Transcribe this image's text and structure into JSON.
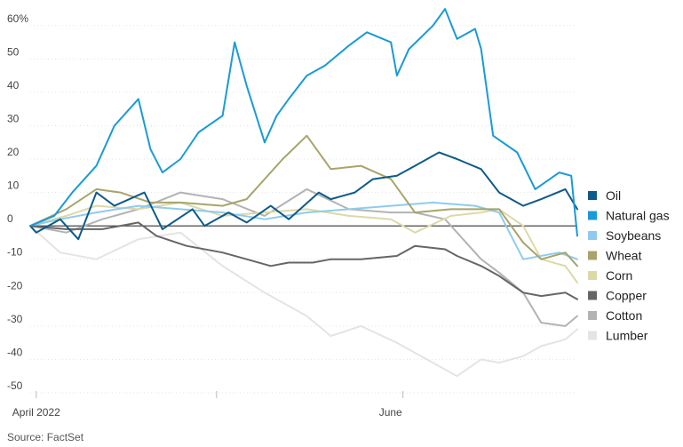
{
  "chart_data": {
    "type": "line",
    "title": "",
    "xlabel": "",
    "ylabel": "",
    "y_unit_suffix": "%",
    "ylim": [
      -50,
      65
    ],
    "yticks": [
      60,
      50,
      40,
      30,
      20,
      10,
      0,
      -10,
      -20,
      -30,
      -40,
      -50
    ],
    "ytick_labels": [
      "60%",
      "50",
      "40",
      "30",
      "20",
      "10",
      "0",
      "-10",
      "-20",
      "-30",
      "-40",
      "-50"
    ],
    "xlim": [
      "2022-03-31",
      "2022-06-30"
    ],
    "xticks": [
      {
        "date": "2022-04-01",
        "label": "April 2022"
      },
      {
        "date": "2022-05-01",
        "label": ""
      },
      {
        "date": "2022-06-01",
        "label": "June"
      }
    ],
    "grid": true,
    "legend_position": "right",
    "source": "Source: FactSet",
    "series": [
      {
        "name": "Oil",
        "color": "#0e5a8a",
        "x": [
          "2022-03-31",
          "2022-04-01",
          "2022-04-05",
          "2022-04-08",
          "2022-04-11",
          "2022-04-14",
          "2022-04-19",
          "2022-04-22",
          "2022-04-27",
          "2022-04-29",
          "2022-05-03",
          "2022-05-06",
          "2022-05-10",
          "2022-05-13",
          "2022-05-18",
          "2022-05-20",
          "2022-05-24",
          "2022-05-27",
          "2022-05-31",
          "2022-06-03",
          "2022-06-07",
          "2022-06-10",
          "2022-06-14",
          "2022-06-17",
          "2022-06-21",
          "2022-06-24",
          "2022-06-28",
          "2022-06-30"
        ],
        "y": [
          0,
          -2,
          2,
          -4,
          10,
          6,
          10,
          -1,
          5,
          0,
          4,
          1,
          6,
          2,
          10,
          8,
          10,
          14,
          15,
          18,
          22,
          20,
          17,
          10,
          6,
          8,
          11,
          5
        ]
      },
      {
        "name": "Natural gas",
        "color": "#1a9ad6",
        "x": [
          "2022-03-31",
          "2022-04-04",
          "2022-04-07",
          "2022-04-11",
          "2022-04-14",
          "2022-04-18",
          "2022-04-20",
          "2022-04-22",
          "2022-04-25",
          "2022-04-28",
          "2022-05-02",
          "2022-05-04",
          "2022-05-06",
          "2022-05-09",
          "2022-05-11",
          "2022-05-13",
          "2022-05-16",
          "2022-05-19",
          "2022-05-23",
          "2022-05-26",
          "2022-05-30",
          "2022-05-31",
          "2022-06-02",
          "2022-06-06",
          "2022-06-08",
          "2022-06-10",
          "2022-06-13",
          "2022-06-14",
          "2022-06-16",
          "2022-06-20",
          "2022-06-23",
          "2022-06-27",
          "2022-06-29",
          "2022-06-30"
        ],
        "y": [
          0,
          3,
          10,
          18,
          30,
          38,
          23,
          16,
          20,
          28,
          33,
          55,
          42,
          25,
          33,
          38,
          45,
          48,
          54,
          58,
          55,
          45,
          53,
          60,
          65,
          56,
          59,
          53,
          27,
          22,
          11,
          16,
          15,
          -3
        ]
      },
      {
        "name": "Soybeans",
        "color": "#8fcbee",
        "x": [
          "2022-03-31",
          "2022-04-05",
          "2022-04-11",
          "2022-04-18",
          "2022-04-25",
          "2022-05-02",
          "2022-05-09",
          "2022-05-16",
          "2022-05-23",
          "2022-05-30",
          "2022-06-06",
          "2022-06-13",
          "2022-06-17",
          "2022-06-21",
          "2022-06-27",
          "2022-06-30"
        ],
        "y": [
          0,
          2,
          4,
          6,
          5,
          4,
          2,
          4,
          5,
          6,
          7,
          6,
          4,
          -10,
          -8,
          -10
        ]
      },
      {
        "name": "Wheat",
        "color": "#a8a46a",
        "x": [
          "2022-03-31",
          "2022-04-06",
          "2022-04-11",
          "2022-04-15",
          "2022-04-20",
          "2022-04-25",
          "2022-05-02",
          "2022-05-06",
          "2022-05-12",
          "2022-05-16",
          "2022-05-20",
          "2022-05-25",
          "2022-05-30",
          "2022-06-03",
          "2022-06-09",
          "2022-06-14",
          "2022-06-17",
          "2022-06-21",
          "2022-06-24",
          "2022-06-28",
          "2022-06-30"
        ],
        "y": [
          0,
          5,
          11,
          10,
          7,
          7,
          6,
          8,
          20,
          27,
          17,
          18,
          14,
          4,
          5,
          5,
          5,
          -5,
          -10,
          -8,
          -12
        ]
      },
      {
        "name": "Corn",
        "color": "#dcd9a8",
        "x": [
          "2022-03-31",
          "2022-04-06",
          "2022-04-11",
          "2022-04-18",
          "2022-04-25",
          "2022-05-02",
          "2022-05-09",
          "2022-05-16",
          "2022-05-23",
          "2022-05-30",
          "2022-06-03",
          "2022-06-09",
          "2022-06-14",
          "2022-06-17",
          "2022-06-21",
          "2022-06-24",
          "2022-06-28",
          "2022-06-30"
        ],
        "y": [
          0,
          3,
          6,
          5,
          7,
          3,
          4,
          5,
          3,
          2,
          -2,
          3,
          4,
          5,
          0,
          -10,
          -12,
          -17
        ]
      },
      {
        "name": "Copper",
        "color": "#666666",
        "x": [
          "2022-03-31",
          "2022-04-06",
          "2022-04-12",
          "2022-04-18",
          "2022-04-21",
          "2022-04-26",
          "2022-05-02",
          "2022-05-06",
          "2022-05-10",
          "2022-05-13",
          "2022-05-17",
          "2022-05-20",
          "2022-05-25",
          "2022-05-31",
          "2022-06-03",
          "2022-06-08",
          "2022-06-10",
          "2022-06-14",
          "2022-06-17",
          "2022-06-21",
          "2022-06-24",
          "2022-06-28",
          "2022-06-30"
        ],
        "y": [
          0,
          -1,
          -1,
          1,
          -3,
          -6,
          -8,
          -10,
          -12,
          -11,
          -11,
          -10,
          -10,
          -9,
          -6,
          -7,
          -9,
          -12,
          -15,
          -20,
          -21,
          -20,
          -22
        ]
      },
      {
        "name": "Cotton",
        "color": "#b3b3b3",
        "x": [
          "2022-03-31",
          "2022-04-06",
          "2022-04-12",
          "2022-04-18",
          "2022-04-25",
          "2022-05-02",
          "2022-05-09",
          "2022-05-16",
          "2022-05-23",
          "2022-05-30",
          "2022-06-03",
          "2022-06-08",
          "2022-06-14",
          "2022-06-17",
          "2022-06-21",
          "2022-06-24",
          "2022-06-28",
          "2022-06-30"
        ],
        "y": [
          0,
          -2,
          2,
          5,
          10,
          8,
          3,
          11,
          5,
          4,
          4,
          2,
          -10,
          -14,
          -20,
          -29,
          -30,
          -27
        ]
      },
      {
        "name": "Lumber",
        "color": "#e4e4e4",
        "x": [
          "2022-03-31",
          "2022-04-05",
          "2022-04-11",
          "2022-04-18",
          "2022-04-25",
          "2022-05-02",
          "2022-05-09",
          "2022-05-16",
          "2022-05-20",
          "2022-05-25",
          "2022-05-31",
          "2022-06-06",
          "2022-06-10",
          "2022-06-14",
          "2022-06-17",
          "2022-06-21",
          "2022-06-24",
          "2022-06-28",
          "2022-06-30"
        ],
        "y": [
          0,
          -8,
          -10,
          -4,
          -2,
          -12,
          -20,
          -27,
          -33,
          -30,
          -35,
          -41,
          -45,
          -40,
          -41,
          -39,
          -36,
          -34,
          -31
        ]
      }
    ]
  }
}
